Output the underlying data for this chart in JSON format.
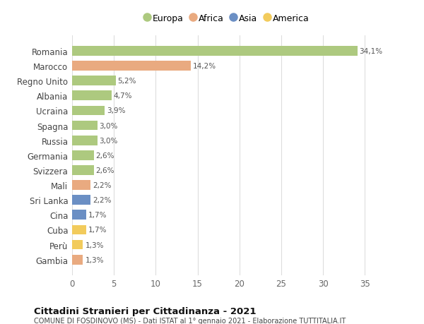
{
  "countries": [
    "Romania",
    "Marocco",
    "Regno Unito",
    "Albania",
    "Ucraina",
    "Spagna",
    "Russia",
    "Germania",
    "Svizzera",
    "Mali",
    "Sri Lanka",
    "Cina",
    "Cuba",
    "Perù",
    "Gambia"
  ],
  "values": [
    34.1,
    14.2,
    5.2,
    4.7,
    3.9,
    3.0,
    3.0,
    2.6,
    2.6,
    2.2,
    2.2,
    1.7,
    1.7,
    1.3,
    1.3
  ],
  "labels": [
    "34,1%",
    "14,2%",
    "5,2%",
    "4,7%",
    "3,9%",
    "3,0%",
    "3,0%",
    "2,6%",
    "2,6%",
    "2,2%",
    "2,2%",
    "1,7%",
    "1,7%",
    "1,3%",
    "1,3%"
  ],
  "continents": [
    "Europa",
    "Africa",
    "Europa",
    "Europa",
    "Europa",
    "Europa",
    "Europa",
    "Europa",
    "Europa",
    "Africa",
    "Asia",
    "Asia",
    "America",
    "America",
    "Africa"
  ],
  "colors": {
    "Europa": "#adc97f",
    "Africa": "#e9aa80",
    "Asia": "#6b8fc4",
    "America": "#f2cb5c"
  },
  "xlim": [
    0,
    37
  ],
  "xticks": [
    0,
    5,
    10,
    15,
    20,
    25,
    30,
    35
  ],
  "title": "Cittadini Stranieri per Cittadinanza - 2021",
  "subtitle": "COMUNE DI FOSDINOVO (MS) - Dati ISTAT al 1° gennaio 2021 - Elaborazione TUTTITALIA.IT",
  "bg_color": "#ffffff",
  "grid_color": "#dddddd",
  "legend_order": [
    "Europa",
    "Africa",
    "Asia",
    "America"
  ]
}
